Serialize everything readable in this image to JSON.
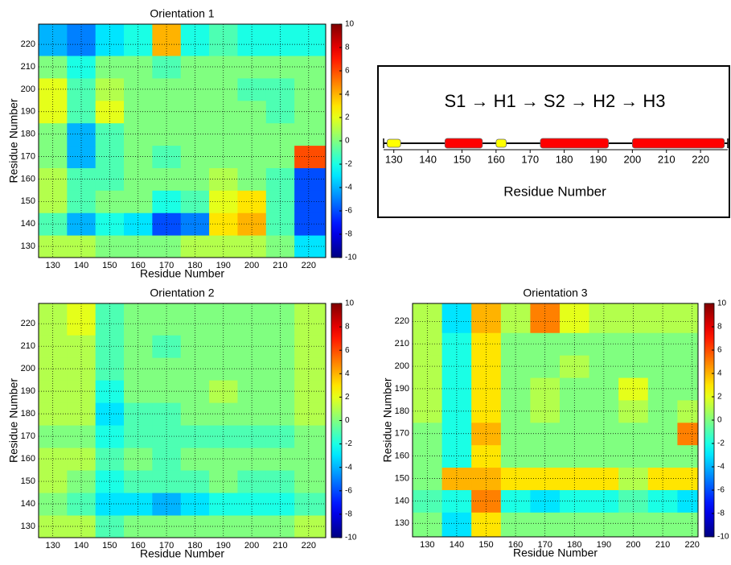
{
  "chart_data": [
    {
      "type": "heatmap",
      "title": "Orientation 1",
      "x_label": "Residue Number",
      "y_label": "Residue Number",
      "xbins": [
        125,
        135,
        145,
        155,
        165,
        175,
        185,
        195,
        205,
        215,
        226
      ],
      "ybins": [
        125,
        135,
        145,
        155,
        165,
        175,
        185,
        195,
        205,
        215,
        229
      ],
      "xlim": [
        125,
        226
      ],
      "ylim": [
        125,
        229
      ],
      "xticks": [
        130,
        140,
        150,
        160,
        170,
        180,
        190,
        200,
        210,
        220
      ],
      "yticks": [
        130,
        140,
        150,
        160,
        170,
        180,
        190,
        200,
        210,
        220
      ],
      "colormap": "jet",
      "clim": [
        -10,
        10
      ],
      "cticks": [
        -10,
        -8,
        -6,
        -4,
        -2,
        0,
        2,
        4,
        6,
        8,
        10
      ],
      "grid": true,
      "z": [
        [
          1,
          1,
          0,
          0,
          0,
          1,
          1,
          1,
          0,
          -3
        ],
        [
          -1,
          -4,
          -2,
          -3,
          -6,
          -5,
          3,
          4,
          -1,
          -6
        ],
        [
          1,
          -1,
          0,
          0,
          -2,
          -1,
          2,
          3,
          -1,
          -6
        ],
        [
          1,
          -1,
          -1,
          0,
          0,
          0,
          1,
          0,
          -1,
          -6
        ],
        [
          0,
          -4,
          -1,
          0,
          -1,
          0,
          0,
          0,
          0,
          6
        ],
        [
          0,
          -4,
          -1,
          0,
          0,
          0,
          0,
          0,
          0,
          0
        ],
        [
          2,
          -1,
          2,
          0,
          0,
          0,
          0,
          0,
          -1,
          0
        ],
        [
          2,
          -1,
          1,
          0,
          0,
          0,
          0,
          -1,
          -1,
          0
        ],
        [
          0,
          -2,
          0,
          0,
          -1,
          0,
          0,
          0,
          0,
          0
        ],
        [
          -4,
          -5,
          -3,
          -2,
          4,
          -2,
          -1,
          -2,
          -2,
          -2
        ]
      ]
    },
    {
      "type": "heatmap",
      "title": "Orientation 2",
      "x_label": "Residue Number",
      "y_label": "Residue Number",
      "xbins": [
        125,
        135,
        145,
        155,
        165,
        175,
        185,
        195,
        205,
        215,
        226
      ],
      "ybins": [
        125,
        135,
        145,
        155,
        165,
        175,
        185,
        195,
        205,
        215,
        229
      ],
      "xlim": [
        125,
        226
      ],
      "ylim": [
        125,
        229
      ],
      "xticks": [
        130,
        140,
        150,
        160,
        170,
        180,
        190,
        200,
        210,
        220
      ],
      "yticks": [
        130,
        140,
        150,
        160,
        170,
        180,
        190,
        200,
        210,
        220
      ],
      "colormap": "jet",
      "clim": [
        -10,
        10
      ],
      "cticks": [
        -10,
        -8,
        -6,
        -4,
        -2,
        0,
        2,
        4,
        6,
        8,
        10
      ],
      "grid": true,
      "z": [
        [
          1,
          1,
          -1,
          0,
          0,
          0,
          0,
          0,
          0,
          1
        ],
        [
          0,
          -1,
          -3,
          -3,
          -4,
          -3,
          -2,
          -2,
          -2,
          -1
        ],
        [
          1,
          0,
          -2,
          -1,
          -1,
          -1,
          0,
          -1,
          -1,
          0
        ],
        [
          1,
          1,
          -1,
          0,
          -1,
          0,
          0,
          0,
          0,
          0
        ],
        [
          0,
          0,
          -2,
          -1,
          -1,
          -1,
          -1,
          -1,
          -1,
          0
        ],
        [
          1,
          1,
          -3,
          -1,
          -1,
          0,
          0,
          0,
          0,
          1
        ],
        [
          1,
          1,
          -2,
          0,
          0,
          0,
          1,
          0,
          0,
          1
        ],
        [
          1,
          1,
          -1,
          0,
          0,
          0,
          0,
          0,
          0,
          1
        ],
        [
          1,
          1,
          -1,
          0,
          -1,
          0,
          0,
          0,
          0,
          1
        ],
        [
          1,
          2,
          -1,
          0,
          0,
          0,
          0,
          0,
          0,
          1
        ]
      ]
    },
    {
      "type": "heatmap",
      "title": "Orientation 3",
      "x_label": "Residue Number",
      "y_label": "Residue Number",
      "xbins": [
        125,
        135,
        145,
        155,
        165,
        175,
        185,
        195,
        205,
        215,
        222
      ],
      "ybins": [
        124,
        135,
        145,
        155,
        165,
        175,
        185,
        195,
        205,
        215,
        228
      ],
      "xlim": [
        125,
        222
      ],
      "ylim": [
        124,
        228
      ],
      "xticks": [
        130,
        140,
        150,
        160,
        170,
        180,
        190,
        200,
        210,
        220
      ],
      "yticks": [
        130,
        140,
        150,
        160,
        170,
        180,
        190,
        200,
        210,
        220
      ],
      "colormap": "jet",
      "clim": [
        -10,
        10
      ],
      "cticks": [
        -10,
        -8,
        -6,
        -4,
        -2,
        0,
        2,
        4,
        6,
        8,
        10
      ],
      "grid": true,
      "z": [
        [
          0,
          -3,
          3,
          0,
          0,
          0,
          0,
          0,
          0,
          0
        ],
        [
          -1,
          -2,
          5,
          -2,
          -3,
          -2,
          -2,
          -1,
          -2,
          -3
        ],
        [
          0,
          4,
          4,
          3,
          3,
          3,
          3,
          1,
          3,
          3
        ],
        [
          0,
          -2,
          3,
          0,
          0,
          0,
          0,
          0,
          0,
          0
        ],
        [
          0,
          -2,
          4,
          0,
          0,
          0,
          0,
          0,
          0,
          5
        ],
        [
          1,
          -2,
          3,
          0,
          1,
          0,
          0,
          1,
          0,
          1
        ],
        [
          1,
          -2,
          3,
          0,
          1,
          0,
          0,
          2,
          0,
          0
        ],
        [
          1,
          -2,
          3,
          0,
          0,
          1,
          0,
          0,
          0,
          0
        ],
        [
          1,
          -2,
          3,
          0,
          0,
          0,
          0,
          0,
          0,
          0
        ],
        [
          1,
          -3,
          4,
          1,
          5,
          2,
          1,
          1,
          1,
          1
        ]
      ]
    }
  ],
  "diagram": {
    "title": "S1 → H1 → S2 → H2 → H3",
    "x_label": "Residue Number",
    "xlim": [
      127,
      228
    ],
    "xticks": [
      130,
      140,
      150,
      160,
      170,
      180,
      190,
      200,
      210,
      220
    ],
    "elements": [
      {
        "start": 128,
        "end": 132,
        "color": "#ffff00"
      },
      {
        "start": 145,
        "end": 156,
        "color": "#ff0000"
      },
      {
        "start": 160,
        "end": 163,
        "color": "#ffff00"
      },
      {
        "start": 173,
        "end": 193,
        "color": "#ff0000"
      },
      {
        "start": 200,
        "end": 227,
        "color": "#ff0000"
      }
    ]
  }
}
